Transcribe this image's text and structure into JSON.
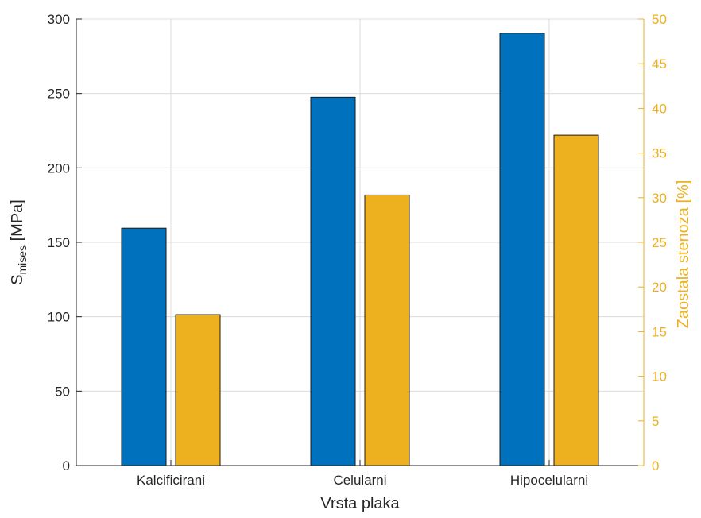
{
  "chart_data": {
    "type": "bar",
    "categories": [
      "Kalcificirani",
      "Celularni",
      "Hipocelularni"
    ],
    "series": [
      {
        "axis": "left",
        "color": "#0072BD",
        "values": [
          159.5,
          247.5,
          290.5
        ]
      },
      {
        "axis": "right",
        "color": "#EDB120",
        "values": [
          16.9,
          30.3,
          37.0
        ]
      }
    ],
    "xlabel": "Vrsta plaka",
    "ylabel": {
      "main": "S",
      "sub": "mises",
      "unit": " [MPa]"
    },
    "y2label": "Zaostala stenoza [%]",
    "ylim": [
      0,
      300
    ],
    "y2lim": [
      0,
      50
    ],
    "yticks": [
      0,
      50,
      100,
      150,
      200,
      250,
      300
    ],
    "y2ticks": [
      0,
      5,
      10,
      15,
      20,
      25,
      30,
      35,
      40,
      45,
      50
    ],
    "grid": true,
    "colors": {
      "left_axis": "#262626",
      "right_axis": "#EDB120",
      "grid": "#dcdcdc"
    }
  }
}
